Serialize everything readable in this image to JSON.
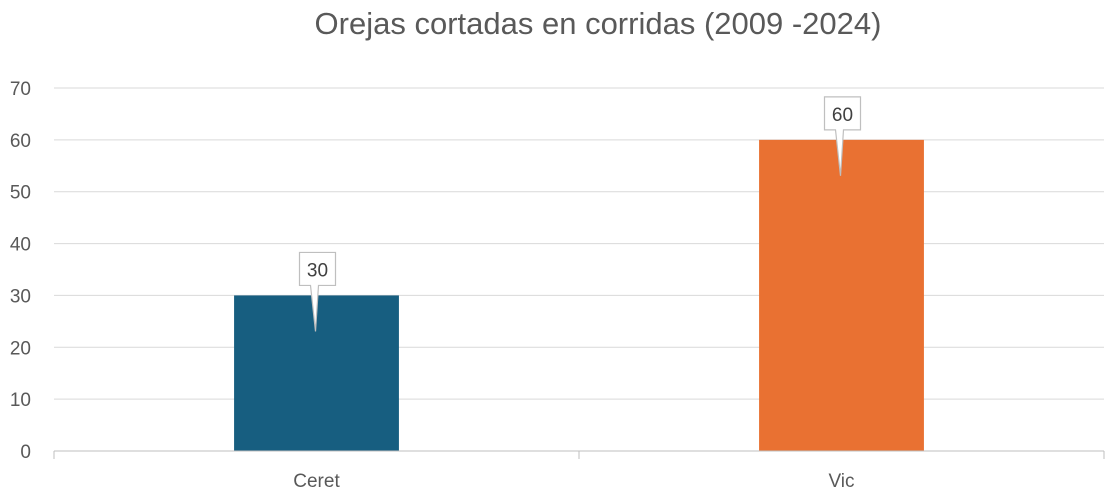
{
  "chart_data": {
    "type": "bar",
    "title": "Orejas cortadas en corridas (2009 -2024)",
    "xlabel": "",
    "ylabel": "",
    "categories": [
      "Ceret",
      "Vic"
    ],
    "values": [
      30,
      60
    ],
    "data_labels": [
      "30",
      "60"
    ],
    "colors": [
      "#175E80",
      "#E97132"
    ],
    "ylim": [
      0,
      70
    ],
    "yticks": [
      0,
      10,
      20,
      30,
      40,
      50,
      60,
      70
    ],
    "grid": true,
    "legend": "none"
  }
}
